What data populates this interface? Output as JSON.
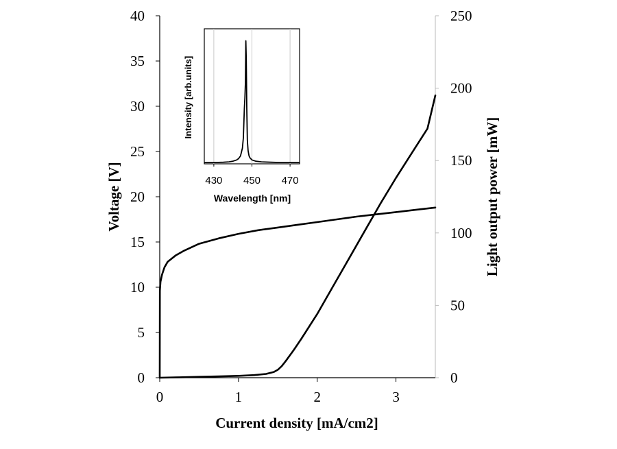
{
  "chart_data": {
    "type": "line",
    "xlabel": "Current density [mA/cm2]",
    "ylabel_left": "Voltage [V]",
    "ylabel_right": "Light output power [mW]",
    "x_ticks": [
      "0",
      "1",
      "2",
      "3"
    ],
    "y_left_ticks": [
      "0",
      "5",
      "10",
      "15",
      "20",
      "25",
      "30",
      "35",
      "40"
    ],
    "y_right_ticks": [
      "0",
      "50",
      "100",
      "150",
      "200",
      "250"
    ],
    "xlim": [
      0,
      3.5
    ],
    "ylim_left": [
      0,
      40
    ],
    "ylim_right": [
      0,
      250
    ],
    "grid": false,
    "series": [
      {
        "name": "Voltage",
        "axis": "left",
        "x": [
          0,
          0.002,
          0.01,
          0.03,
          0.06,
          0.1,
          0.2,
          0.3,
          0.5,
          0.75,
          1.0,
          1.25,
          1.5,
          1.75,
          2.0,
          2.25,
          2.5,
          2.75,
          3.0,
          3.25,
          3.5
        ],
        "y": [
          0,
          9.6,
          10.6,
          11.4,
          12.2,
          12.8,
          13.5,
          14.0,
          14.8,
          15.4,
          15.9,
          16.3,
          16.6,
          16.9,
          17.2,
          17.5,
          17.8,
          18.05,
          18.3,
          18.55,
          18.8
        ]
      },
      {
        "name": "Light output power",
        "axis": "right",
        "x": [
          0,
          0.25,
          0.5,
          0.75,
          1.0,
          1.2,
          1.35,
          1.45,
          1.5,
          1.55,
          1.6,
          1.7,
          1.8,
          2.0,
          2.2,
          2.4,
          2.6,
          2.8,
          3.0,
          3.2,
          3.4,
          3.5
        ],
        "y": [
          0,
          0.3,
          0.6,
          0.9,
          1.3,
          1.8,
          2.6,
          4.0,
          5.5,
          8.0,
          11.5,
          19.0,
          27.0,
          44.0,
          63.0,
          82.0,
          101.0,
          120.0,
          138.0,
          155.0,
          172.0,
          195.0
        ]
      }
    ],
    "inset": {
      "type": "line",
      "xlabel": "Wavelength [nm]",
      "ylabel": "Intensity [arb.units]",
      "x_ticks": [
        "430",
        "450",
        "470"
      ],
      "xlim": [
        425,
        475
      ],
      "ylim": [
        0,
        1
      ],
      "grid": "vertical",
      "series": [
        {
          "name": "Spectrum",
          "x": [
            425,
            430,
            435,
            438,
            440,
            442,
            443,
            444,
            445,
            445.5,
            446,
            446.3,
            446.6,
            446.8,
            447,
            447.3,
            447.6,
            448,
            448.5,
            449,
            450,
            452,
            455,
            460,
            465,
            470,
            475
          ],
          "y": [
            0.01,
            0.01,
            0.012,
            0.015,
            0.02,
            0.03,
            0.04,
            0.06,
            0.12,
            0.2,
            0.42,
            0.5,
            0.62,
            0.94,
            0.8,
            0.42,
            0.18,
            0.1,
            0.06,
            0.045,
            0.03,
            0.02,
            0.015,
            0.012,
            0.01,
            0.01,
            0.01
          ]
        }
      ]
    }
  }
}
